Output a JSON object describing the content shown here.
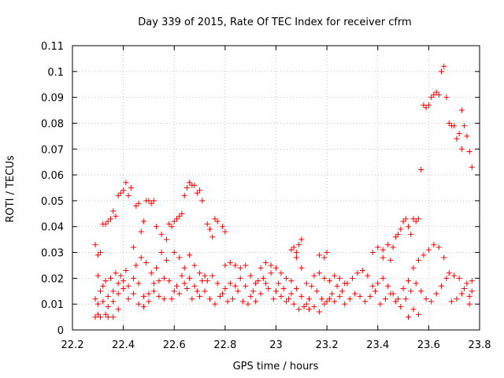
{
  "chart_data": {
    "type": "scatter",
    "title": "Day 339 of 2015, Rate Of TEC Index for receiver cfrm",
    "xlabel": "GPS time / hours",
    "ylabel": "ROTI / TECUs",
    "xlim": [
      22.2,
      23.8
    ],
    "ylim": [
      0,
      0.11
    ],
    "xticks": [
      "22.2",
      "22.4",
      "22.6",
      "22.8",
      "23",
      "23.2",
      "23.4",
      "23.6",
      "23.8"
    ],
    "yticks": [
      "0",
      "0.01",
      "0.02",
      "0.03",
      "0.04",
      "0.05",
      "0.06",
      "0.07",
      "0.08",
      "0.09",
      "0.1",
      "0.11"
    ],
    "grid": true,
    "marker": "+",
    "color": "#ff0000",
    "series": [
      {
        "points": [
          [
            22.29,
            0.033
          ],
          [
            22.3,
            0.029
          ],
          [
            22.31,
            0.03
          ],
          [
            22.32,
            0.041
          ],
          [
            22.33,
            0.041
          ],
          [
            22.34,
            0.042
          ],
          [
            22.35,
            0.043
          ],
          [
            22.36,
            0.046
          ],
          [
            22.37,
            0.044
          ],
          [
            22.38,
            0.052
          ],
          [
            22.39,
            0.053
          ],
          [
            22.4,
            0.054
          ],
          [
            22.41,
            0.057
          ],
          [
            22.42,
            0.052
          ],
          [
            22.43,
            0.055
          ],
          [
            22.45,
            0.048
          ],
          [
            22.46,
            0.049
          ],
          [
            22.49,
            0.05
          ],
          [
            22.5,
            0.05
          ],
          [
            22.51,
            0.049
          ],
          [
            22.52,
            0.05
          ],
          [
            22.44,
            0.032
          ],
          [
            22.47,
            0.038
          ],
          [
            22.48,
            0.042
          ],
          [
            22.53,
            0.04
          ],
          [
            22.55,
            0.037
          ],
          [
            22.57,
            0.035
          ],
          [
            22.58,
            0.041
          ],
          [
            22.59,
            0.04
          ],
          [
            22.6,
            0.042
          ],
          [
            22.61,
            0.043
          ],
          [
            22.62,
            0.044
          ],
          [
            22.63,
            0.045
          ],
          [
            22.64,
            0.052
          ],
          [
            22.65,
            0.055
          ],
          [
            22.66,
            0.057
          ],
          [
            22.67,
            0.056
          ],
          [
            22.68,
            0.056
          ],
          [
            22.69,
            0.053
          ],
          [
            22.7,
            0.054
          ],
          [
            22.71,
            0.05
          ],
          [
            22.73,
            0.041
          ],
          [
            22.74,
            0.039
          ],
          [
            22.75,
            0.036
          ],
          [
            22.76,
            0.043
          ],
          [
            22.77,
            0.042
          ],
          [
            22.79,
            0.04
          ],
          [
            22.8,
            0.038
          ],
          [
            22.29,
            0.005
          ],
          [
            22.3,
            0.006
          ],
          [
            22.31,
            0.005
          ],
          [
            22.33,
            0.006
          ],
          [
            22.34,
            0.005
          ],
          [
            22.36,
            0.005
          ],
          [
            22.38,
            0.008
          ],
          [
            22.29,
            0.012
          ],
          [
            22.31,
            0.015
          ],
          [
            22.33,
            0.019
          ],
          [
            22.35,
            0.02
          ],
          [
            22.37,
            0.022
          ],
          [
            22.39,
            0.021
          ],
          [
            22.41,
            0.023
          ],
          [
            22.3,
            0.021
          ],
          [
            22.32,
            0.017
          ],
          [
            22.34,
            0.013
          ],
          [
            22.36,
            0.011
          ],
          [
            22.38,
            0.014
          ],
          [
            22.4,
            0.016
          ],
          [
            22.42,
            0.012
          ],
          [
            22.3,
            0.01
          ],
          [
            22.32,
            0.011
          ],
          [
            22.34,
            0.009
          ],
          [
            22.36,
            0.015
          ],
          [
            22.38,
            0.018
          ],
          [
            22.4,
            0.019
          ],
          [
            22.42,
            0.017
          ],
          [
            22.44,
            0.02
          ],
          [
            22.46,
            0.018
          ],
          [
            22.48,
            0.013
          ],
          [
            22.5,
            0.011
          ],
          [
            22.52,
            0.015
          ],
          [
            22.54,
            0.019
          ],
          [
            22.56,
            0.02
          ],
          [
            22.44,
            0.014
          ],
          [
            22.46,
            0.01
          ],
          [
            22.48,
            0.009
          ],
          [
            22.5,
            0.014
          ],
          [
            22.52,
            0.018
          ],
          [
            22.54,
            0.013
          ],
          [
            22.56,
            0.012
          ],
          [
            22.45,
            0.025
          ],
          [
            22.47,
            0.028
          ],
          [
            22.49,
            0.026
          ],
          [
            22.51,
            0.022
          ],
          [
            22.53,
            0.024
          ],
          [
            22.55,
            0.03
          ],
          [
            22.57,
            0.027
          ],
          [
            22.58,
            0.019
          ],
          [
            22.6,
            0.015
          ],
          [
            22.62,
            0.014
          ],
          [
            22.64,
            0.018
          ],
          [
            22.66,
            0.02
          ],
          [
            22.68,
            0.017
          ],
          [
            22.7,
            0.013
          ],
          [
            22.59,
            0.012
          ],
          [
            22.61,
            0.017
          ],
          [
            22.63,
            0.021
          ],
          [
            22.65,
            0.016
          ],
          [
            22.67,
            0.012
          ],
          [
            22.69,
            0.015
          ],
          [
            22.71,
            0.019
          ],
          [
            22.6,
            0.03
          ],
          [
            22.62,
            0.028
          ],
          [
            22.64,
            0.024
          ],
          [
            22.66,
            0.029
          ],
          [
            22.68,
            0.025
          ],
          [
            22.7,
            0.022
          ],
          [
            22.72,
            0.021
          ],
          [
            22.72,
            0.015
          ],
          [
            22.74,
            0.012
          ],
          [
            22.76,
            0.01
          ],
          [
            22.78,
            0.013
          ],
          [
            22.8,
            0.016
          ],
          [
            22.82,
            0.018
          ],
          [
            22.84,
            0.017
          ],
          [
            22.73,
            0.019
          ],
          [
            22.75,
            0.021
          ],
          [
            22.77,
            0.018
          ],
          [
            22.79,
            0.014
          ],
          [
            22.81,
            0.011
          ],
          [
            22.83,
            0.012
          ],
          [
            22.85,
            0.015
          ],
          [
            22.8,
            0.025
          ],
          [
            22.82,
            0.026
          ],
          [
            22.84,
            0.025
          ],
          [
            22.86,
            0.024
          ],
          [
            22.88,
            0.025
          ],
          [
            22.9,
            0.021
          ],
          [
            22.92,
            0.018
          ],
          [
            22.86,
            0.02
          ],
          [
            22.88,
            0.017
          ],
          [
            22.9,
            0.013
          ],
          [
            22.92,
            0.011
          ],
          [
            22.94,
            0.014
          ],
          [
            22.96,
            0.018
          ],
          [
            22.98,
            0.022
          ],
          [
            22.87,
            0.011
          ],
          [
            22.89,
            0.01
          ],
          [
            22.91,
            0.015
          ],
          [
            22.93,
            0.019
          ],
          [
            22.95,
            0.02
          ],
          [
            22.97,
            0.016
          ],
          [
            22.99,
            0.012
          ],
          [
            22.94,
            0.024
          ],
          [
            22.96,
            0.026
          ],
          [
            22.98,
            0.025
          ],
          [
            23.0,
            0.024
          ],
          [
            23.02,
            0.022
          ],
          [
            23.04,
            0.02
          ],
          [
            23.06,
            0.019
          ],
          [
            23.0,
            0.015
          ],
          [
            23.02,
            0.013
          ],
          [
            23.04,
            0.011
          ],
          [
            23.06,
            0.014
          ],
          [
            23.08,
            0.016
          ],
          [
            23.1,
            0.013
          ],
          [
            23.12,
            0.01
          ],
          [
            23.01,
            0.018
          ],
          [
            23.03,
            0.016
          ],
          [
            23.05,
            0.012
          ],
          [
            23.07,
            0.01
          ],
          [
            23.09,
            0.008
          ],
          [
            23.11,
            0.009
          ],
          [
            23.13,
            0.012
          ],
          [
            23.06,
            0.031
          ],
          [
            23.07,
            0.032
          ],
          [
            23.08,
            0.03
          ],
          [
            23.09,
            0.033
          ],
          [
            23.1,
            0.035
          ],
          [
            23.08,
            0.028
          ],
          [
            23.1,
            0.024
          ],
          [
            23.12,
            0.018
          ],
          [
            23.14,
            0.017
          ],
          [
            23.16,
            0.015
          ],
          [
            23.18,
            0.012
          ],
          [
            23.2,
            0.011
          ],
          [
            23.22,
            0.014
          ],
          [
            23.24,
            0.017
          ],
          [
            23.13,
            0.008
          ],
          [
            23.15,
            0.009
          ],
          [
            23.17,
            0.007
          ],
          [
            23.19,
            0.01
          ],
          [
            23.21,
            0.012
          ],
          [
            23.23,
            0.011
          ],
          [
            23.25,
            0.013
          ],
          [
            23.15,
            0.021
          ],
          [
            23.17,
            0.022
          ],
          [
            23.19,
            0.02
          ],
          [
            23.21,
            0.019
          ],
          [
            23.23,
            0.021
          ],
          [
            23.25,
            0.02
          ],
          [
            23.27,
            0.018
          ],
          [
            23.17,
            0.029
          ],
          [
            23.19,
            0.028
          ],
          [
            23.2,
            0.03
          ],
          [
            23.26,
            0.015
          ],
          [
            23.28,
            0.018
          ],
          [
            23.3,
            0.02
          ],
          [
            23.32,
            0.022
          ],
          [
            23.34,
            0.023
          ],
          [
            23.36,
            0.021
          ],
          [
            23.38,
            0.017
          ],
          [
            23.27,
            0.01
          ],
          [
            23.29,
            0.012
          ],
          [
            23.31,
            0.014
          ],
          [
            23.33,
            0.013
          ],
          [
            23.35,
            0.011
          ],
          [
            23.37,
            0.013
          ],
          [
            23.39,
            0.015
          ],
          [
            23.38,
            0.03
          ],
          [
            23.4,
            0.032
          ],
          [
            23.42,
            0.031
          ],
          [
            23.44,
            0.033
          ],
          [
            23.42,
            0.028
          ],
          [
            23.45,
            0.027
          ],
          [
            23.46,
            0.032
          ],
          [
            23.4,
            0.018
          ],
          [
            23.42,
            0.02
          ],
          [
            23.44,
            0.017
          ],
          [
            23.46,
            0.014
          ],
          [
            23.48,
            0.012
          ],
          [
            23.5,
            0.016
          ],
          [
            23.52,
            0.019
          ],
          [
            23.41,
            0.01
          ],
          [
            23.43,
            0.012
          ],
          [
            23.45,
            0.014
          ],
          [
            23.47,
            0.011
          ],
          [
            23.49,
            0.009
          ],
          [
            23.51,
            0.012
          ],
          [
            23.53,
            0.015
          ],
          [
            23.47,
            0.036
          ],
          [
            23.48,
            0.037
          ],
          [
            23.49,
            0.039
          ],
          [
            23.5,
            0.042
          ],
          [
            23.51,
            0.043
          ],
          [
            23.52,
            0.04
          ],
          [
            23.53,
            0.037
          ],
          [
            23.54,
            0.043
          ],
          [
            23.55,
            0.042
          ],
          [
            23.56,
            0.043
          ],
          [
            23.57,
            0.062
          ],
          [
            23.52,
            0.005
          ],
          [
            23.54,
            0.008
          ],
          [
            23.56,
            0.006
          ],
          [
            23.54,
            0.024
          ],
          [
            23.56,
            0.027
          ],
          [
            23.58,
            0.029
          ],
          [
            23.6,
            0.031
          ],
          [
            23.62,
            0.033
          ],
          [
            23.64,
            0.032
          ],
          [
            23.66,
            0.028
          ],
          [
            23.55,
            0.018
          ],
          [
            23.57,
            0.015
          ],
          [
            23.59,
            0.012
          ],
          [
            23.61,
            0.011
          ],
          [
            23.63,
            0.014
          ],
          [
            23.65,
            0.017
          ],
          [
            23.67,
            0.02
          ],
          [
            23.58,
            0.087
          ],
          [
            23.59,
            0.086
          ],
          [
            23.6,
            0.087
          ],
          [
            23.61,
            0.09
          ],
          [
            23.62,
            0.091
          ],
          [
            23.63,
            0.092
          ],
          [
            23.64,
            0.091
          ],
          [
            23.65,
            0.1
          ],
          [
            23.66,
            0.102
          ],
          [
            23.67,
            0.09
          ],
          [
            23.68,
            0.08
          ],
          [
            23.69,
            0.079
          ],
          [
            23.7,
            0.079
          ],
          [
            23.71,
            0.074
          ],
          [
            23.72,
            0.076
          ],
          [
            23.73,
            0.07
          ],
          [
            23.73,
            0.085
          ],
          [
            23.74,
            0.079
          ],
          [
            23.75,
            0.075
          ],
          [
            23.76,
            0.069
          ],
          [
            23.77,
            0.063
          ],
          [
            23.68,
            0.022
          ],
          [
            23.7,
            0.021
          ],
          [
            23.72,
            0.02
          ],
          [
            23.74,
            0.016
          ],
          [
            23.76,
            0.013
          ],
          [
            23.77,
            0.015
          ],
          [
            23.69,
            0.011
          ],
          [
            23.71,
            0.012
          ],
          [
            23.73,
            0.014
          ],
          [
            23.75,
            0.018
          ],
          [
            23.77,
            0.019
          ],
          [
            23.76,
            0.01
          ]
        ]
      }
    ]
  }
}
